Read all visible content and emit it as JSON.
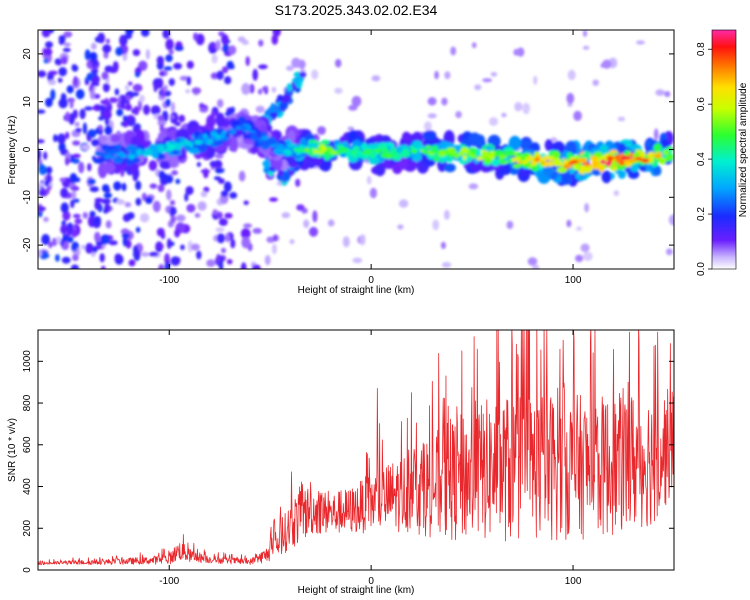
{
  "title": "S173.2025.343.02.02.E34",
  "colors": {
    "snr_line": "#e8282c",
    "axis": "#000000",
    "spectrogram_background": "#ffffff"
  },
  "chart_data": [
    {
      "type": "heatmap",
      "name": "spectrogram",
      "xlabel": "Height of straight line (km)",
      "ylabel": "Frequency (Hz)",
      "xlim": [
        -165,
        150
      ],
      "ylim": [
        -25,
        25
      ],
      "xticks": [
        -100,
        0,
        100
      ],
      "xtick_labels": [
        "-100",
        "0",
        "100"
      ],
      "yticks": [
        -20,
        -10,
        0,
        10,
        20
      ],
      "ytick_labels": [
        "-20",
        "-10",
        "0",
        "10",
        "20"
      ],
      "colorbar": {
        "label": "Normalized spectral amplitude",
        "range": [
          0,
          0.87
        ],
        "ticks": [
          0.0,
          0.2,
          0.4,
          0.6,
          0.8
        ],
        "tick_labels": [
          "0.0",
          "0.2",
          "0.4",
          "0.6",
          "0.8"
        ],
        "colormap": "rainbow"
      },
      "ridge": {
        "description": "dominant frequency track of the signal",
        "x": [
          -135,
          -120,
          -105,
          -90,
          -75,
          -65,
          -45,
          -30,
          -25,
          -15,
          0,
          25,
          50,
          75,
          100,
          125,
          148
        ],
        "y": [
          -1,
          -1,
          0,
          1,
          3,
          5,
          0,
          0,
          0,
          0,
          -1,
          0,
          -1,
          -2,
          -3,
          -2,
          -1
        ],
        "amplitude": [
          0.25,
          0.3,
          0.35,
          0.35,
          0.3,
          0.25,
          0.3,
          0.5,
          0.6,
          0.45,
          0.45,
          0.5,
          0.55,
          0.65,
          0.75,
          0.8,
          0.6
        ]
      },
      "branches": [
        {
          "x": [
            -60,
            -48,
            -40,
            -33
          ],
          "y": [
            2,
            8,
            12,
            16
          ],
          "amplitude": 0.3
        },
        {
          "x": [
            -52,
            -44,
            -38
          ],
          "y": [
            -4,
            -1,
            2
          ],
          "amplitude": 0.35
        },
        {
          "x": [
            -45,
            -38,
            -32
          ],
          "y": [
            -6,
            -3,
            0
          ],
          "amplitude": 0.3
        }
      ]
    },
    {
      "type": "line",
      "name": "snr",
      "xlabel": "Height of straight line (km)",
      "ylabel": "SNR (10 * v/v)",
      "xlim": [
        -165,
        150
      ],
      "ylim": [
        0,
        1150
      ],
      "xticks": [
        -100,
        0,
        100
      ],
      "xtick_labels": [
        "-100",
        "0",
        "100"
      ],
      "yticks": [
        0,
        200,
        400,
        600,
        800,
        1000
      ],
      "ytick_labels": [
        "0",
        "200",
        "400",
        "600",
        "800",
        "1000"
      ],
      "series": [
        {
          "name": "SNR",
          "envelope": {
            "x": [
              -165,
              -130,
              -110,
              -100,
              -95,
              -90,
              -80,
              -60,
              -52,
              -45,
              -40,
              -35,
              -30,
              -20,
              -10,
              0,
              10,
              20,
              30,
              40,
              50,
              60,
              70,
              80,
              90,
              100,
              110,
              120,
              130,
              140,
              148
            ],
            "base": [
              30,
              35,
              40,
              45,
              80,
              60,
              45,
              35,
              60,
              120,
              180,
              220,
              250,
              240,
              250,
              280,
              300,
              320,
              330,
              340,
              360,
              380,
              380,
              390,
              390,
              390,
              390,
              400,
              420,
              440,
              520
            ],
            "spread": [
              15,
              30,
              40,
              60,
              110,
              70,
              40,
              30,
              80,
              180,
              250,
              320,
              260,
              220,
              250,
              320,
              380,
              450,
              560,
              650,
              720,
              780,
              800,
              800,
              800,
              780,
              760,
              750,
              760,
              720,
              600
            ],
            "peaks": [
              [
                -93,
                170
              ],
              [
                -30,
                420
              ],
              [
                3,
                870
              ],
              [
                20,
                850
              ],
              [
                37,
                930
              ],
              [
                45,
                1050
              ],
              [
                70,
                1080
              ],
              [
                87,
                1150
              ],
              [
                110,
                1040
              ],
              [
                128,
                1140
              ],
              [
                142,
                1140
              ]
            ]
          }
        }
      ]
    }
  ]
}
